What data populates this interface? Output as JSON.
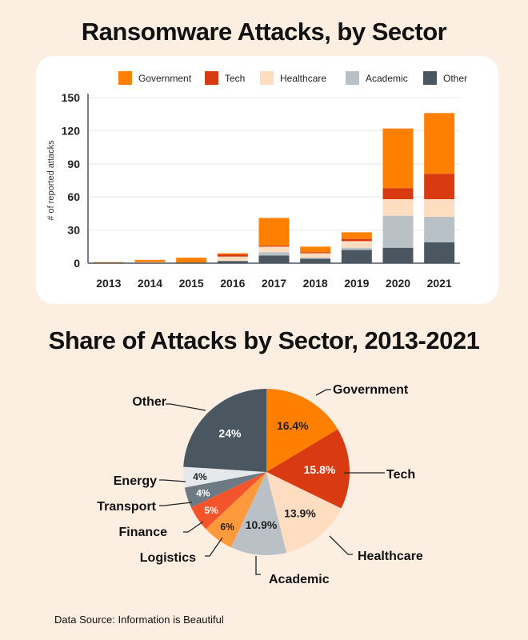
{
  "chart_data": [
    {
      "type": "bar",
      "stacked": true,
      "title": "Ransomware Attacks, by Sector",
      "ylabel": "# of reported attacks",
      "xlabel": "",
      "ylim": [
        0,
        150
      ],
      "yticks": [
        0,
        30,
        60,
        90,
        120,
        150
      ],
      "grid": true,
      "legend": "top",
      "categories": [
        "2013",
        "2014",
        "2015",
        "2016",
        "2017",
        "2018",
        "2019",
        "2020",
        "2021"
      ],
      "series": [
        {
          "name": "Other",
          "color": "#4A5660",
          "values": [
            0,
            0,
            0,
            2,
            7,
            4,
            12,
            14,
            19
          ]
        },
        {
          "name": "Academic",
          "color": "#B9C1C7",
          "values": [
            0,
            0,
            0,
            0,
            3,
            1,
            2,
            29,
            23
          ]
        },
        {
          "name": "Healthcare",
          "color": "#FEDDC0",
          "values": [
            0,
            1,
            0,
            4,
            5,
            4,
            6,
            15,
            16
          ]
        },
        {
          "name": "Tech",
          "color": "#D93A12",
          "values": [
            0,
            0,
            0,
            2,
            1,
            1,
            2,
            10,
            23
          ]
        },
        {
          "name": "Government",
          "color": "#FF7F00",
          "values": [
            1,
            2,
            5,
            1,
            25,
            5,
            6,
            54,
            55
          ]
        }
      ],
      "legend_order": [
        "Government",
        "Tech",
        "Healthcare",
        "Academic",
        "Other"
      ]
    },
    {
      "type": "pie",
      "title": "Share of Attacks by Sector, 2013-2021",
      "slices": [
        {
          "label": "Government",
          "value": 16.4,
          "text": "16.4%",
          "color": "#FF7F00"
        },
        {
          "label": "Tech",
          "value": 15.8,
          "text": "15.8%",
          "color": "#D93A12"
        },
        {
          "label": "Healthcare",
          "value": 13.9,
          "text": "13.9%",
          "color": "#FEDDC0"
        },
        {
          "label": "Academic",
          "value": 10.9,
          "text": "10.9%",
          "color": "#B9C1C7"
        },
        {
          "label": "Logistics",
          "value": 6,
          "text": "6%",
          "color": "#FF9A3C"
        },
        {
          "label": "Finance",
          "value": 5,
          "text": "5%",
          "color": "#F4542C"
        },
        {
          "label": "Transport",
          "value": 4,
          "text": "4%",
          "color": "#6E7A83"
        },
        {
          "label": "Energy",
          "value": 4,
          "text": "4%",
          "color": "#E6E9EB"
        },
        {
          "label": "Other",
          "value": 24,
          "text": "24%",
          "color": "#4A5660"
        }
      ]
    }
  ],
  "source": "Data Source: Information is Beautiful"
}
